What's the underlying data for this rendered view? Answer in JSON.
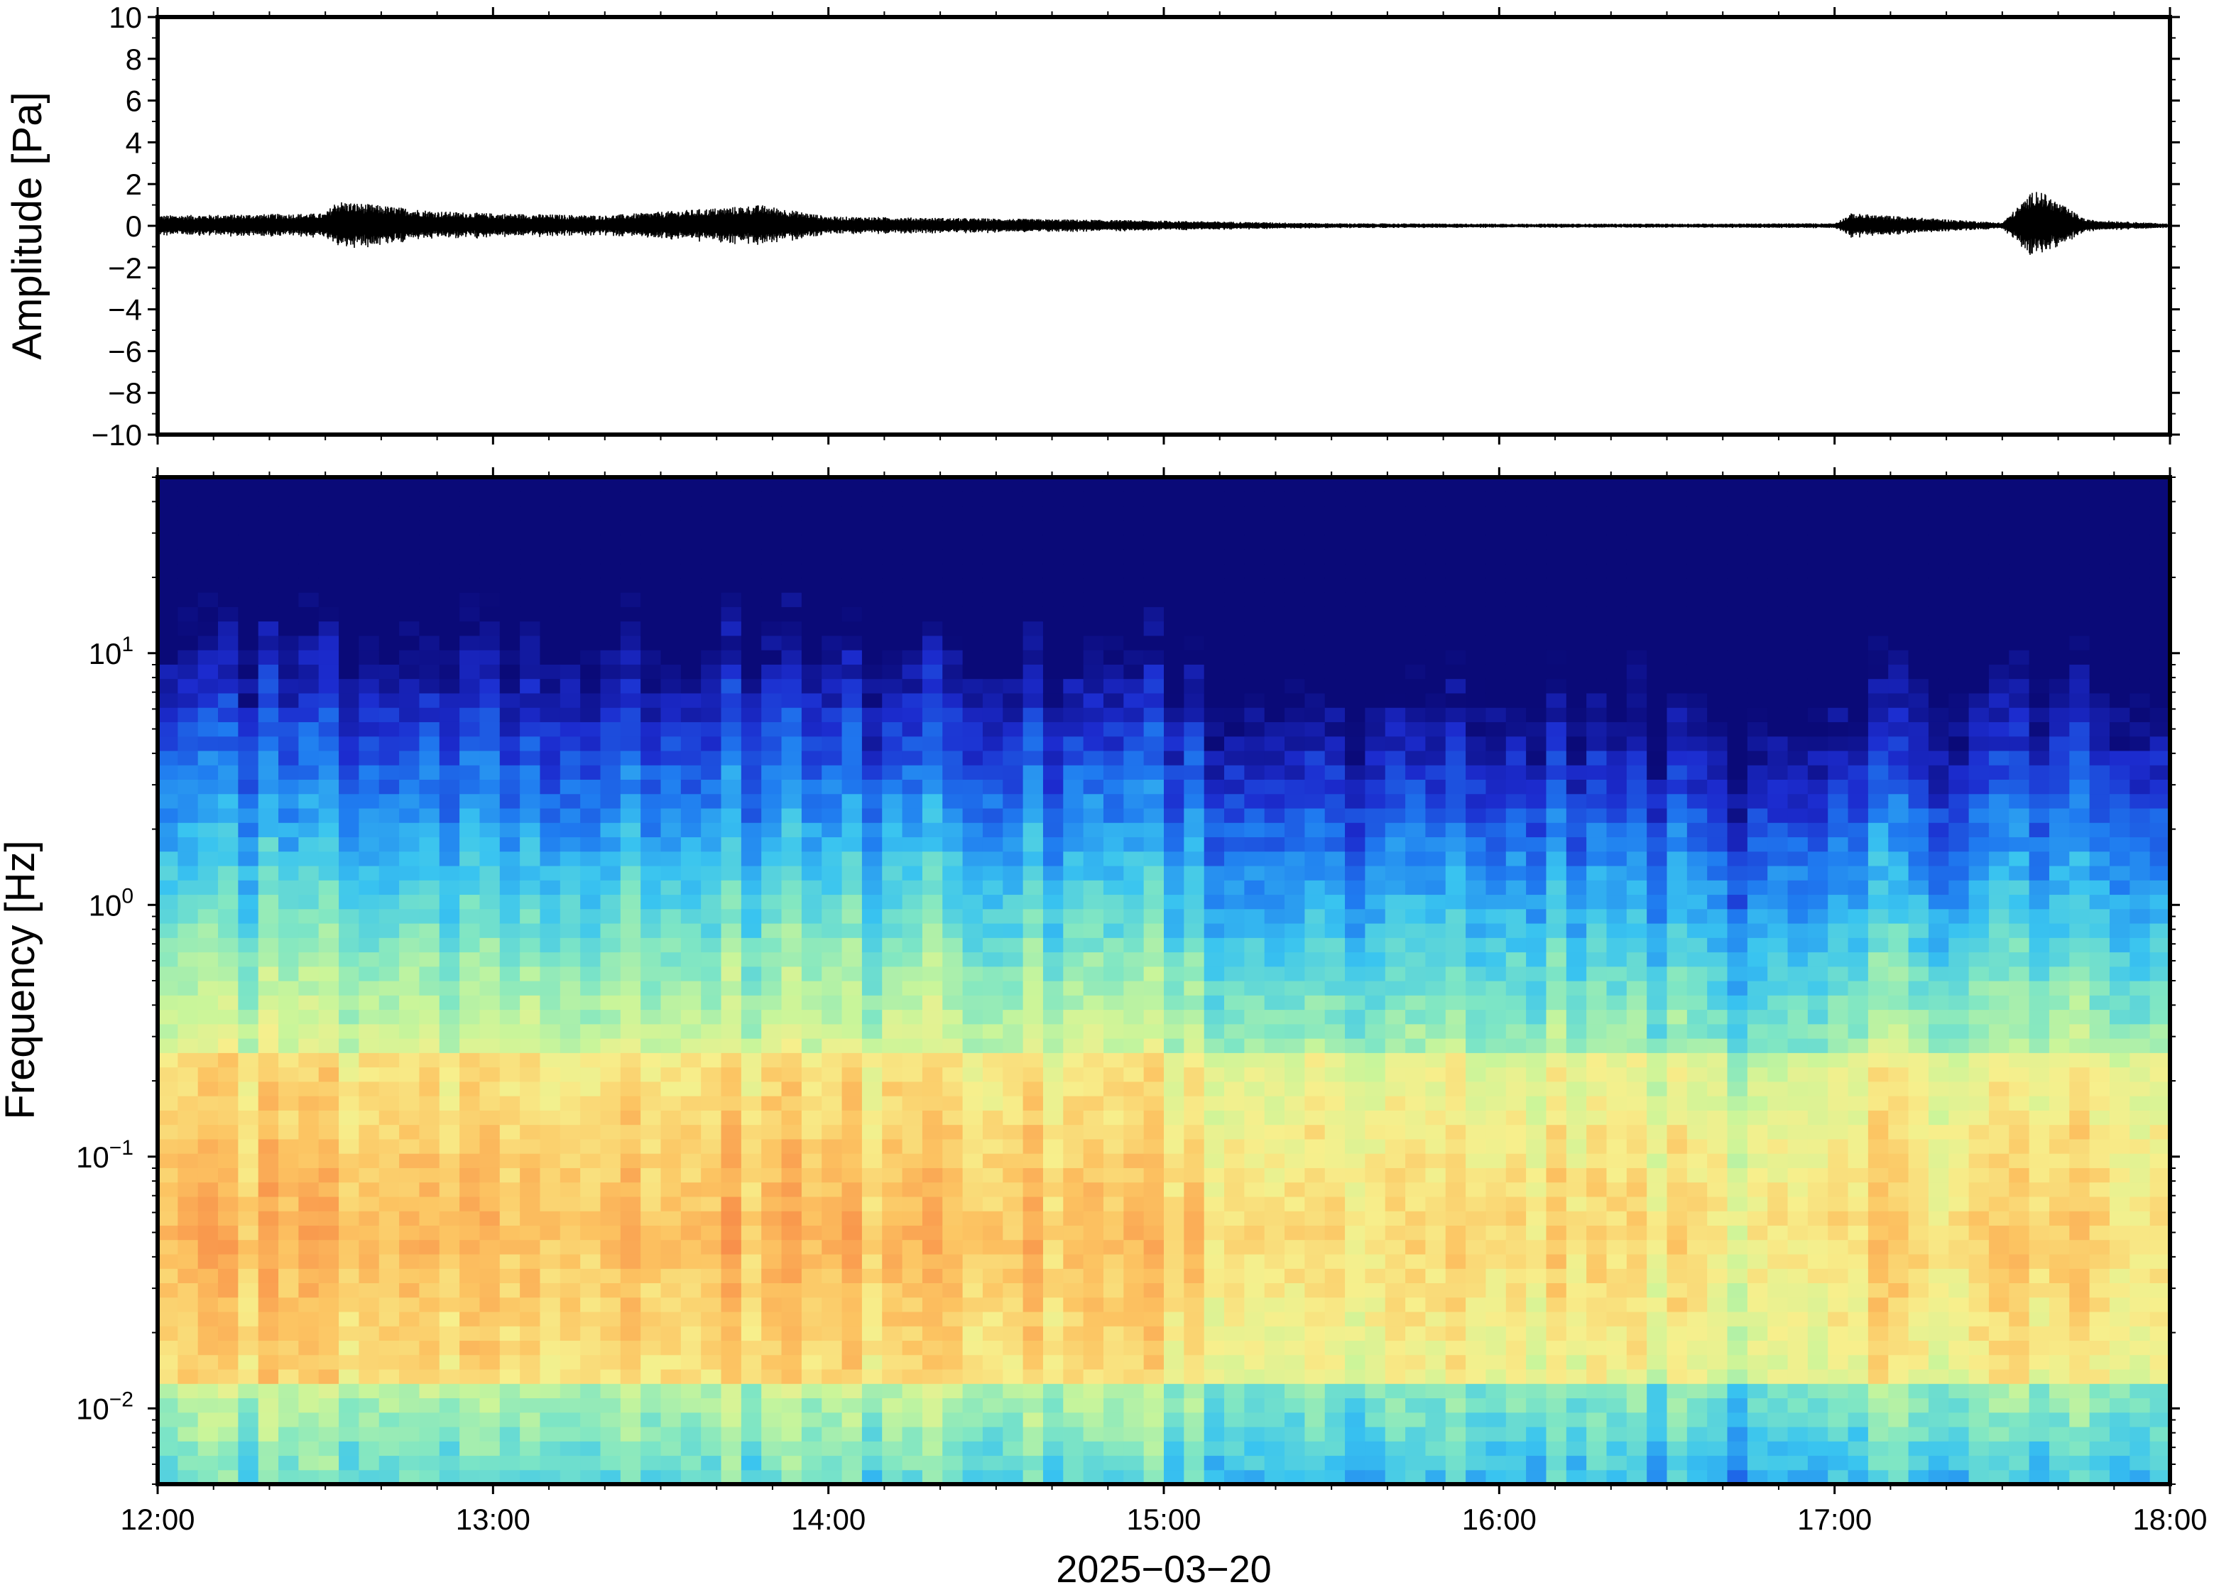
{
  "chart_data": [
    {
      "type": "line",
      "ylabel": "Amplitude [Pa]",
      "ylim": [
        -10,
        10
      ],
      "yticks": [
        10,
        8,
        6,
        4,
        2,
        0,
        -2,
        -4,
        -6,
        -8,
        -10
      ],
      "ytick_labels": [
        "10",
        "8",
        "6",
        "4",
        "2",
        "0",
        "−2",
        "−4",
        "−6",
        "−8",
        "−10"
      ],
      "xlim": [
        "12:00",
        "18:00"
      ],
      "series": [
        {
          "values_description_free": true,
          "x": [
            "12:00",
            "12:30",
            "12:32",
            "12:50",
            "13:00",
            "13:20",
            "13:48",
            "14:00",
            "14:30",
            "15:00",
            "15:30",
            "16:00",
            "16:30",
            "17:00",
            "17:03",
            "17:30",
            "17:36",
            "17:45",
            "18:00"
          ],
          "envelope": [
            0.5,
            0.6,
            1.2,
            0.7,
            0.6,
            0.5,
            1.0,
            0.45,
            0.35,
            0.25,
            0.12,
            0.1,
            0.1,
            0.12,
            0.6,
            0.15,
            1.8,
            0.3,
            0.1
          ]
        }
      ]
    },
    {
      "type": "heatmap",
      "ylabel": "Frequency [Hz]",
      "xlabel": "2025−03−20",
      "yscale": "log",
      "ylim": [
        0.005,
        50
      ],
      "yticks": [
        0.01,
        0.1,
        1,
        10
      ],
      "ytick_base": "10",
      "ytick_exponents": [
        "−2",
        "−1",
        "0",
        "1"
      ],
      "xlim": [
        "12:00",
        "18:00"
      ],
      "xticks": [
        "12:00",
        "13:00",
        "14:00",
        "15:00",
        "16:00",
        "17:00",
        "18:00"
      ],
      "colormap": [
        "#0a0a78",
        "#1c2ccf",
        "#1f7bf0",
        "#39c4f0",
        "#7fe6c4",
        "#c9f59a",
        "#f7ef8c",
        "#fcc462",
        "#f9974c",
        "#ee5a44"
      ]
    }
  ]
}
